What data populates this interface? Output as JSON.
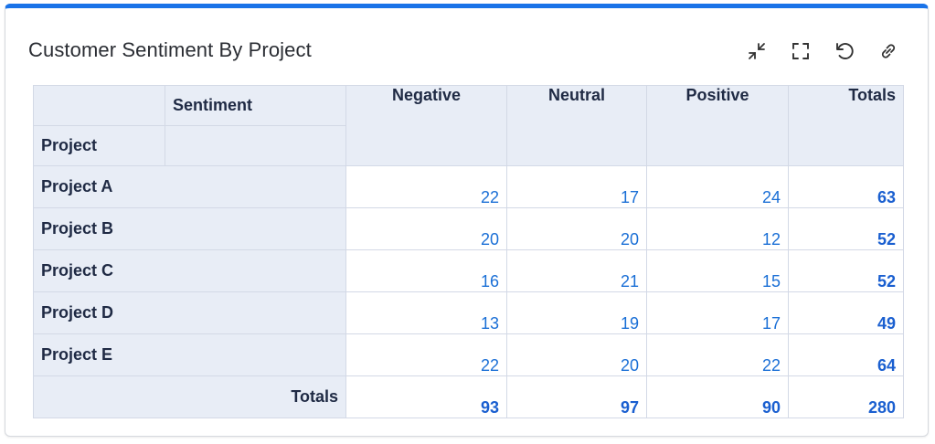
{
  "widget": {
    "title": "Customer Sentiment By Project"
  },
  "toolbar": {
    "icons": [
      "collapse-icon",
      "fullscreen-icon",
      "refresh-icon",
      "link-icon"
    ]
  },
  "table": {
    "column_dimension_label": "Sentiment",
    "row_dimension_label": "Project",
    "columns": [
      "Negative",
      "Neutral",
      "Positive",
      "Totals"
    ],
    "rows": [
      {
        "label": "Project A",
        "values": [
          "22",
          "17",
          "24"
        ],
        "total": "63"
      },
      {
        "label": "Project B",
        "values": [
          "20",
          "20",
          "12"
        ],
        "total": "52"
      },
      {
        "label": "Project C",
        "values": [
          "16",
          "21",
          "15"
        ],
        "total": "52"
      },
      {
        "label": "Project D",
        "values": [
          "13",
          "19",
          "17"
        ],
        "total": "49"
      },
      {
        "label": "Project E",
        "values": [
          "22",
          "20",
          "22"
        ],
        "total": "64"
      }
    ],
    "totals": {
      "label": "Totals",
      "values": [
        "93",
        "97",
        "90"
      ],
      "total": "280"
    }
  },
  "colors": {
    "accent": "#1a73e8",
    "header_bg": "#e8edf6",
    "value_text": "#1a6fd6"
  }
}
